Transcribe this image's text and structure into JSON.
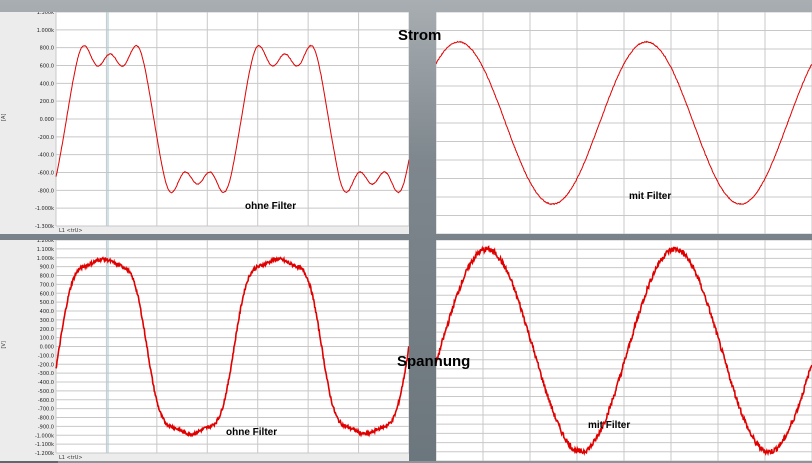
{
  "labels": {
    "top_center": "Strom",
    "bottom_center": "Spannung",
    "top_left_note": "ohne Filter",
    "top_right_note": "mit Filter",
    "bottom_left_note": "ohne Filter",
    "bottom_right_note": "mit Filter"
  },
  "chart_data": [
    {
      "type": "line",
      "title": "",
      "ylabel": "[A]",
      "ylim": [
        -1.3,
        1.3
      ],
      "yticks": [
        "1.300k",
        "1.000k",
        "800.0",
        "600.0",
        "400.0",
        "200.0",
        "0.000",
        "-200.0",
        "-400.0",
        "-600.0",
        "-800.0",
        "-1.000k",
        "-1.300k"
      ],
      "footer": "L1  <trU>",
      "annotation": "ohne Filter",
      "series": [
        {
          "shape": "distorted current with double-hump peaks",
          "peak": 1.17,
          "trough": -1.14,
          "periods": 2
        }
      ]
    },
    {
      "type": "line",
      "title": "",
      "annotation": "mit Filter",
      "series": [
        {
          "shape": "sinusoidal current",
          "peak": 0.95,
          "trough": -0.95,
          "periods": 2
        }
      ]
    },
    {
      "type": "line",
      "title": "",
      "ylabel": "[V]",
      "ylim": [
        -1.2,
        1.2
      ],
      "yticks": [
        "1.200k",
        "1.100k",
        "1.000k",
        "900.0",
        "800.0",
        "700.0",
        "600.0",
        "500.0",
        "400.0",
        "300.0",
        "200.0",
        "100.0",
        "0.000",
        "-100.0",
        "-200.0",
        "-300.0",
        "-400.0",
        "-500.0",
        "-600.0",
        "-700.0",
        "-800.0",
        "-900.0",
        "-1.000k",
        "-1.100k",
        "-1.200k"
      ],
      "footer": "L1  <trU>",
      "annotation": "ohne Filter",
      "series": [
        {
          "shape": "distorted voltage with flattened peaks",
          "peak": 1.1,
          "trough": -1.1,
          "periods": 2
        }
      ]
    },
    {
      "type": "line",
      "title": "",
      "annotation": "mit Filter",
      "series": [
        {
          "shape": "noisy sinusoidal voltage",
          "peak": 1.1,
          "trough": -1.1,
          "periods": 2
        }
      ]
    }
  ]
}
